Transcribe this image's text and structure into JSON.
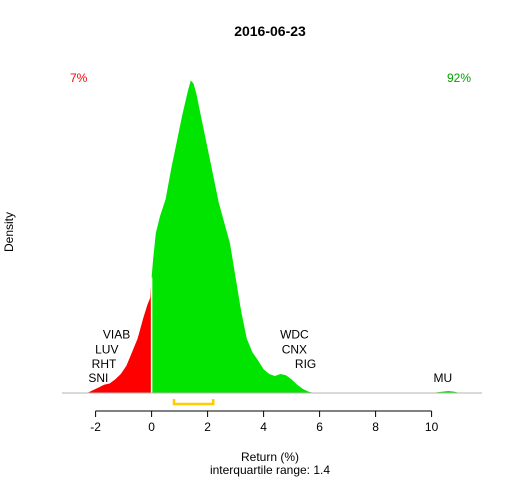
{
  "chart_data": {
    "type": "area",
    "title": "2016-06-23",
    "xlabel": "Return (%)",
    "ylabel": "Density",
    "subtitle": "interquartile range: 1.4",
    "xlim": [
      -3.2,
      11.8
    ],
    "ylim": [
      0,
      0.49
    ],
    "x_ticks": [
      "-2",
      "0",
      "2",
      "4",
      "6",
      "8",
      "10"
    ],
    "x_tick_values": [
      -2,
      0,
      2,
      4,
      6,
      8,
      10
    ],
    "split_at": 0,
    "negative_share_label": "7%",
    "positive_share_label": "92%",
    "colors": {
      "negative": "#ff0000",
      "positive": "#00e400",
      "baseline": "#b3b3b3",
      "iqr": "#ffcc00",
      "neg_label": "#ff0000",
      "pos_label": "#00a000"
    },
    "iqr": [
      0.8,
      2.2
    ],
    "density": [
      [
        -2.3,
        0.0
      ],
      [
        -2.1,
        0.004
      ],
      [
        -1.9,
        0.008
      ],
      [
        -1.7,
        0.012
      ],
      [
        -1.5,
        0.014
      ],
      [
        -1.3,
        0.02
      ],
      [
        -1.1,
        0.028
      ],
      [
        -0.9,
        0.04
      ],
      [
        -0.7,
        0.06
      ],
      [
        -0.5,
        0.08
      ],
      [
        -0.3,
        0.11
      ],
      [
        -0.15,
        0.13
      ],
      [
        -0.05,
        0.14
      ],
      [
        0.0,
        0.17
      ],
      [
        0.05,
        0.195
      ],
      [
        0.15,
        0.235
      ],
      [
        0.3,
        0.26
      ],
      [
        0.5,
        0.285
      ],
      [
        0.7,
        0.33
      ],
      [
        0.9,
        0.37
      ],
      [
        1.1,
        0.41
      ],
      [
        1.3,
        0.445
      ],
      [
        1.4,
        0.46
      ],
      [
        1.5,
        0.455
      ],
      [
        1.6,
        0.44
      ],
      [
        1.8,
        0.4
      ],
      [
        2.0,
        0.36
      ],
      [
        2.2,
        0.32
      ],
      [
        2.4,
        0.28
      ],
      [
        2.6,
        0.25
      ],
      [
        2.8,
        0.22
      ],
      [
        3.0,
        0.17
      ],
      [
        3.2,
        0.12
      ],
      [
        3.4,
        0.08
      ],
      [
        3.6,
        0.06
      ],
      [
        3.8,
        0.048
      ],
      [
        4.0,
        0.035
      ],
      [
        4.2,
        0.028
      ],
      [
        4.4,
        0.025
      ],
      [
        4.6,
        0.028
      ],
      [
        4.8,
        0.026
      ],
      [
        5.0,
        0.02
      ],
      [
        5.2,
        0.012
      ],
      [
        5.4,
        0.006
      ],
      [
        5.6,
        0.002
      ],
      [
        5.8,
        0.0
      ],
      [
        6.5,
        0.0
      ],
      [
        8.0,
        0.0
      ],
      [
        10.0,
        0.0
      ],
      [
        10.2,
        0.001
      ],
      [
        10.4,
        0.002
      ],
      [
        10.6,
        0.003
      ],
      [
        10.8,
        0.002
      ],
      [
        11.0,
        0.0
      ]
    ],
    "tickers": [
      {
        "label": "VIAB",
        "x": -1.25,
        "y": 0.08
      },
      {
        "label": "LUV",
        "x": -1.6,
        "y": 0.058
      },
      {
        "label": "RHT",
        "x": -1.7,
        "y": 0.037
      },
      {
        "label": "SNI",
        "x": -1.9,
        "y": 0.016
      },
      {
        "label": "WDC",
        "x": 5.1,
        "y": 0.08
      },
      {
        "label": "CNX",
        "x": 5.1,
        "y": 0.058
      },
      {
        "label": "RIG",
        "x": 5.5,
        "y": 0.037
      },
      {
        "label": "MU",
        "x": 10.4,
        "y": 0.016
      }
    ]
  }
}
